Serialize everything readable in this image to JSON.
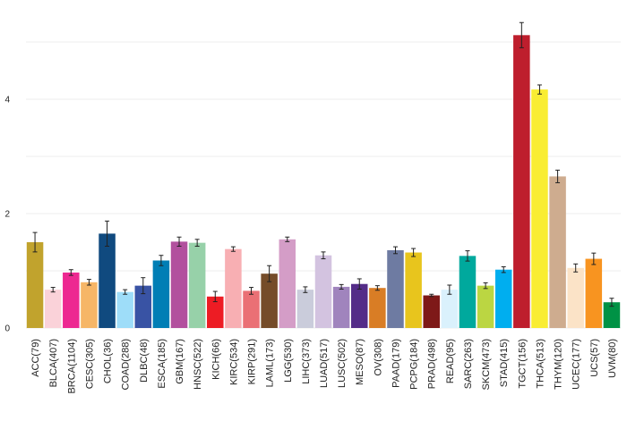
{
  "chart_data": {
    "type": "bar",
    "title": "",
    "xlabel": "",
    "ylabel": "",
    "ylim": [
      0,
      5.3
    ],
    "yticks": [
      "0",
      "2",
      "4"
    ],
    "grid": true,
    "categories": [
      "ACC(79)",
      "BLCA(407)",
      "BRCA(1104)",
      "CESC(305)",
      "CHOL(36)",
      "COAD(288)",
      "DLBC(48)",
      "ESCA(185)",
      "GBM(167)",
      "HNSC(522)",
      "KICH(66)",
      "KIRC(534)",
      "KIRP(291)",
      "LAML(173)",
      "LGG(530)",
      "LIHC(373)",
      "LUAD(517)",
      "LUSC(502)",
      "MESO(87)",
      "OV(308)",
      "PAAD(179)",
      "PCPG(184)",
      "PRAD(498)",
      "READ(95)",
      "SARC(263)",
      "SKCM(473)",
      "STAD(415)",
      "TGCT(156)",
      "THCA(513)",
      "THYM(120)",
      "UCEC(177)",
      "UCS(57)",
      "UVM(80)"
    ],
    "values": [
      1.5,
      0.67,
      0.97,
      0.8,
      1.65,
      0.63,
      0.74,
      1.18,
      1.51,
      1.49,
      0.55,
      1.38,
      0.65,
      0.95,
      1.55,
      0.67,
      1.27,
      0.72,
      0.77,
      0.7,
      1.36,
      1.32,
      0.57,
      0.67,
      1.26,
      0.74,
      1.02,
      5.12,
      4.17,
      2.65,
      1.05,
      1.21,
      0.45
    ],
    "errors": [
      0.17,
      0.04,
      0.05,
      0.05,
      0.22,
      0.04,
      0.14,
      0.09,
      0.08,
      0.06,
      0.09,
      0.04,
      0.06,
      0.14,
      0.04,
      0.05,
      0.06,
      0.04,
      0.09,
      0.04,
      0.06,
      0.07,
      0.02,
      0.08,
      0.09,
      0.05,
      0.05,
      0.22,
      0.08,
      0.11,
      0.07,
      0.1,
      0.07
    ],
    "colors": [
      "#C1A32D",
      "#FAD2D9",
      "#ED2891",
      "#F6B667",
      "#104A7F",
      "#9EDDF9",
      "#3953A4",
      "#007EB5",
      "#B2509E",
      "#97D1A9",
      "#ED1C24",
      "#F8AFB3",
      "#EA7075",
      "#754C29",
      "#D49DC7",
      "#CACCDB",
      "#D3C3E0",
      "#A084BD",
      "#542C88",
      "#D97D25",
      "#6E7BA2",
      "#E8C51D",
      "#7E1918",
      "#DAF1FC",
      "#00A99D",
      "#BBD642",
      "#00AEEF",
      "#BE1E2D",
      "#F9ED32",
      "#CEAC8F",
      "#FBE3C7",
      "#F89420",
      "#009245"
    ]
  }
}
